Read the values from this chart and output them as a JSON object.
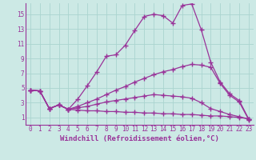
{
  "background_color": "#cce9e5",
  "grid_color": "#aad4cf",
  "line_color": "#993399",
  "marker": "+",
  "markersize": 4,
  "markeredgewidth": 1.0,
  "linewidth": 0.9,
  "xlabel": "Windchill (Refroidissement éolien,°C)",
  "xlabel_fontsize": 6.5,
  "tick_fontsize": 5.5,
  "xmin": -0.5,
  "xmax": 23.5,
  "ymin": 0,
  "ymax": 16.5,
  "yticks": [
    1,
    3,
    5,
    7,
    9,
    11,
    13,
    15
  ],
  "xticks": [
    0,
    1,
    2,
    3,
    4,
    5,
    6,
    7,
    8,
    9,
    10,
    11,
    12,
    13,
    14,
    15,
    16,
    17,
    18,
    19,
    20,
    21,
    22,
    23
  ],
  "series": [
    [
      4.7,
      4.6,
      2.2,
      2.7,
      2.1,
      3.5,
      5.3,
      7.2,
      9.3,
      9.5,
      10.8,
      12.8,
      14.7,
      15.0,
      14.8,
      13.8,
      16.2,
      16.4,
      12.9,
      8.5,
      5.8,
      4.2,
      3.3,
      0.8
    ],
    [
      4.7,
      4.6,
      2.2,
      2.7,
      2.1,
      2.5,
      3.0,
      3.5,
      4.1,
      4.7,
      5.2,
      5.8,
      6.3,
      6.8,
      7.2,
      7.5,
      7.9,
      8.2,
      8.1,
      7.8,
      5.6,
      4.0,
      3.1,
      0.7
    ],
    [
      4.7,
      4.6,
      2.2,
      2.7,
      2.1,
      2.3,
      2.5,
      2.8,
      3.1,
      3.3,
      3.5,
      3.7,
      3.9,
      4.1,
      4.0,
      3.9,
      3.8,
      3.6,
      3.0,
      2.2,
      1.8,
      1.4,
      1.1,
      0.8
    ],
    [
      4.7,
      4.6,
      2.2,
      2.7,
      2.1,
      2.0,
      1.9,
      1.9,
      1.8,
      1.8,
      1.7,
      1.7,
      1.6,
      1.6,
      1.5,
      1.5,
      1.4,
      1.4,
      1.3,
      1.2,
      1.2,
      1.1,
      1.0,
      0.8
    ]
  ]
}
